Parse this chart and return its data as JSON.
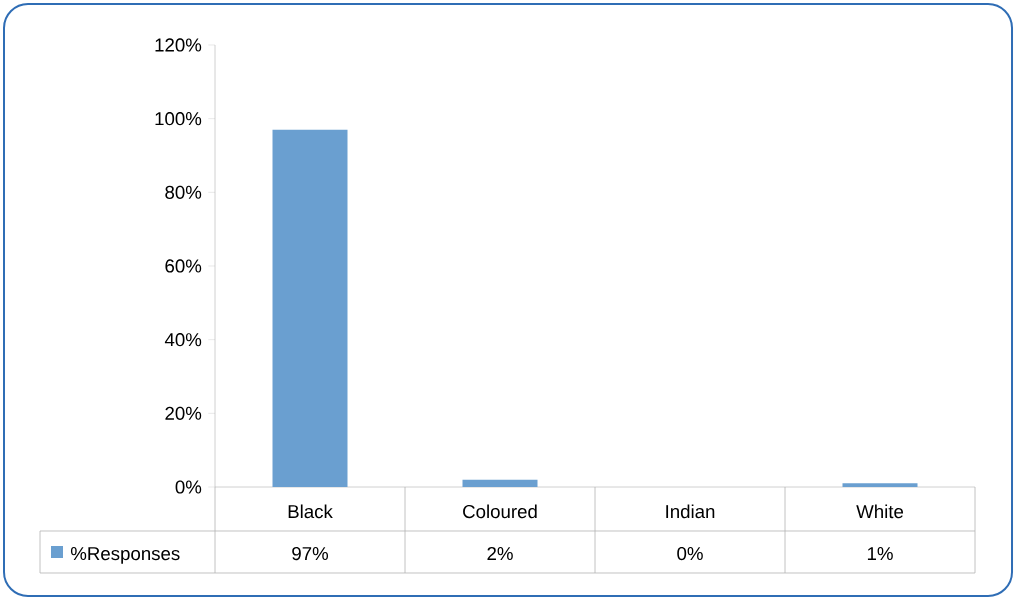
{
  "chart_data": {
    "type": "bar",
    "categories": [
      "Black",
      "Coloured",
      "Indian",
      "White"
    ],
    "series": [
      {
        "name": "%Responses",
        "color": "#6a9fd0",
        "values": [
          97,
          2,
          0,
          1
        ],
        "value_labels": [
          "97%",
          "2%",
          "0%",
          "1%"
        ]
      }
    ],
    "ylim": [
      0,
      120
    ],
    "yticks": [
      {
        "value": 0,
        "label": "0%"
      },
      {
        "value": 20,
        "label": "20%"
      },
      {
        "value": 40,
        "label": "40%"
      },
      {
        "value": 60,
        "label": "60%"
      },
      {
        "value": 80,
        "label": "80%"
      },
      {
        "value": 100,
        "label": "100%"
      },
      {
        "value": 120,
        "label": "120%"
      }
    ]
  }
}
